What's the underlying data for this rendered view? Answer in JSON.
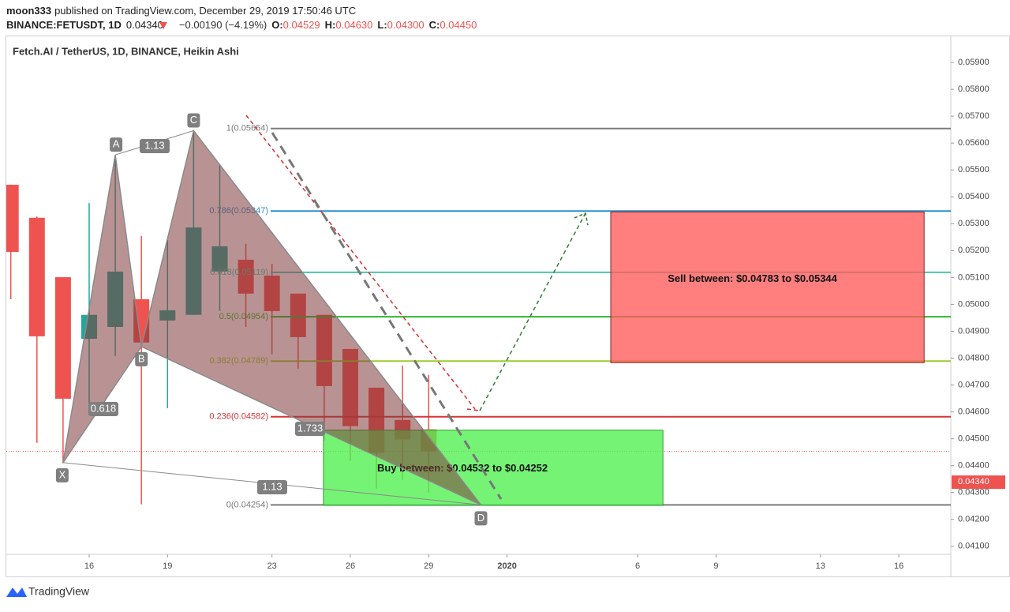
{
  "header": {
    "author": "moon333",
    "published": "published on TradingView.com, December 29, 2019 17:50:46 UTC",
    "symbol": "BINANCE:FETUSDT, 1D",
    "last": "0.04340",
    "change": "−0.00190 (−4.19%)",
    "ohlc": [
      {
        "key": "O:",
        "value": "0.04529"
      },
      {
        "key": "H:",
        "value": "0.04630"
      },
      {
        "key": "L:",
        "value": "0.04300"
      },
      {
        "key": "C:",
        "value": "0.04450"
      }
    ]
  },
  "footer": {
    "brand": "TradingView"
  },
  "chart_data": {
    "type": "candlestick",
    "title": "Fetch.AI / TetherUS, 1D, BINANCE, Heikin Ashi",
    "categories": [
      null,
      null,
      null,
      "16",
      null,
      null,
      "19",
      null,
      null,
      null,
      "23",
      null,
      null,
      "26",
      null,
      null,
      "29",
      null,
      null,
      "2020",
      null,
      null,
      null,
      null,
      "6",
      null,
      null,
      "9",
      null,
      null,
      null,
      "13",
      null,
      null,
      "16",
      null,
      null
    ],
    "open": [
      0.05445,
      0.05322,
      0.05101,
      0.04872,
      0.04916,
      0.05019,
      0.0494,
      0.04961,
      0.05122,
      0.05166,
      0.05107,
      0.0504,
      0.04961,
      0.04834,
      0.0469,
      0.0457,
      0.04535,
      null,
      null,
      null,
      null,
      null,
      null,
      null,
      null,
      null,
      null,
      null,
      null,
      null,
      null,
      null,
      null,
      null,
      null,
      null,
      null
    ],
    "high": [
      0.05445,
      0.05327,
      0.05101,
      0.05377,
      0.05554,
      0.05254,
      0.05239,
      0.05642,
      0.05518,
      0.05225,
      0.05151,
      0.0504,
      0.04961,
      0.04834,
      0.0469,
      0.04773,
      0.04738,
      null,
      null,
      null,
      null,
      null,
      null,
      null,
      null,
      null,
      null,
      null,
      null,
      null,
      null,
      null,
      null,
      null,
      null,
      null,
      null
    ],
    "low": [
      0.05019,
      0.04485,
      0.04409,
      0.04594,
      0.04808,
      0.04256,
      0.04614,
      0.04961,
      0.04975,
      0.04916,
      0.04814,
      0.04761,
      0.04491,
      0.04417,
      0.04315,
      0.04347,
      0.043,
      null,
      null,
      null,
      null,
      null,
      null,
      null,
      null,
      null,
      null,
      null,
      null,
      null,
      null,
      null,
      null,
      null,
      null,
      null,
      null
    ],
    "close": [
      0.05195,
      0.04881,
      0.04649,
      0.04961,
      0.05122,
      0.04858,
      0.04978,
      0.05286,
      0.05216,
      0.0504,
      0.04975,
      0.04878,
      0.04696,
      0.04547,
      0.04447,
      0.04497,
      0.04453,
      null,
      null,
      null,
      null,
      null,
      null,
      null,
      null,
      null,
      null,
      null,
      null,
      null,
      null,
      null,
      null,
      null,
      null,
      null,
      null
    ],
    "up_color": "#26a69a",
    "down_color": "#ef5350",
    "ylim": [
      0.0407,
      0.06
    ],
    "yticks": [
      {
        "value": 0.041,
        "label": "0.04100"
      },
      {
        "value": 0.042,
        "label": "0.04200"
      },
      {
        "value": 0.043,
        "label": "0.04300"
      },
      {
        "value": 0.044,
        "label": "0.04400"
      },
      {
        "value": 0.045,
        "label": "0.04500"
      },
      {
        "value": 0.046,
        "label": "0.04600"
      },
      {
        "value": 0.047,
        "label": "0.04700"
      },
      {
        "value": 0.048,
        "label": "0.04800"
      },
      {
        "value": 0.049,
        "label": "0.04900"
      },
      {
        "value": 0.05,
        "label": "0.05000"
      },
      {
        "value": 0.051,
        "label": "0.05100"
      },
      {
        "value": 0.052,
        "label": "0.05200"
      },
      {
        "value": 0.053,
        "label": "0.05300"
      },
      {
        "value": 0.054,
        "label": "0.05400"
      },
      {
        "value": 0.055,
        "label": "0.05500"
      },
      {
        "value": 0.056,
        "label": "0.05600"
      },
      {
        "value": 0.057,
        "label": "0.05700"
      },
      {
        "value": 0.058,
        "label": "0.05800"
      },
      {
        "value": 0.059,
        "label": "0.05900"
      }
    ],
    "price_label": {
      "value": 0.0434,
      "label": "0.04340"
    },
    "levels": [
      {
        "value": 0.05654,
        "label": "1(0.05654)",
        "color": "#7b7b7b"
      },
      {
        "value": 0.05347,
        "label": "0.786(0.05347)",
        "color": "#2a8fd0"
      },
      {
        "value": 0.05119,
        "label": "0.618(0.05119)",
        "color": "#4cc6a8"
      },
      {
        "value": 0.04954,
        "label": "0.5(0.04954)",
        "color": "#2db82d"
      },
      {
        "value": 0.04789,
        "label": "0.382(0.04789)",
        "color": "#9ccc2f"
      },
      {
        "value": 0.04582,
        "label": "0.236(0.04582)",
        "color": "#d93535"
      },
      {
        "value": 0.04254,
        "label": "0(0.04254)",
        "color": "#7b7b7b"
      }
    ],
    "zones": [
      {
        "label": "Sell between: $0.04783 to $0.05344",
        "from": 0.04783,
        "to": 0.05344,
        "color": "#ff5a5a"
      },
      {
        "label": "Buy between: $0.04532 to $0.04252",
        "from": 0.04252,
        "to": 0.04532,
        "color": "#4ef04e"
      }
    ],
    "pattern": {
      "points": [
        {
          "label": "X",
          "value": 0.04411
        },
        {
          "label": "A",
          "value": 0.05556
        },
        {
          "label": "B",
          "value": 0.04843
        },
        {
          "label": "C",
          "value": 0.05646
        },
        {
          "label": "D",
          "value": 0.04254
        }
      ],
      "ratios": [
        1.13,
        0.618,
        1.733,
        1.13
      ]
    }
  }
}
